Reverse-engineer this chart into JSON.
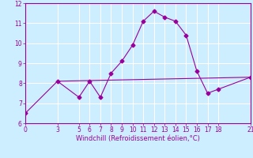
{
  "xlabel": "Windchill (Refroidissement éolien,°C)",
  "x_data": [
    0,
    3,
    5,
    6,
    7,
    8,
    9,
    10,
    11,
    12,
    13,
    14,
    15,
    16,
    17,
    18,
    21
  ],
  "y_line1": [
    6.5,
    8.1,
    7.3,
    8.1,
    7.3,
    8.5,
    9.1,
    9.9,
    11.1,
    11.6,
    11.3,
    11.1,
    10.4,
    8.6,
    7.5,
    7.7,
    8.3
  ],
  "y_line2_x": [
    3,
    21
  ],
  "y_line2_y": [
    8.1,
    8.3
  ],
  "line_color": "#990099",
  "background_color": "#cceeff",
  "grid_color": "#ffffff",
  "xlim": [
    0,
    21
  ],
  "ylim": [
    6,
    12
  ],
  "yticks": [
    6,
    7,
    8,
    9,
    10,
    11,
    12
  ],
  "xticks": [
    0,
    3,
    5,
    6,
    7,
    8,
    9,
    10,
    11,
    12,
    13,
    14,
    15,
    16,
    17,
    18,
    21
  ],
  "marker": "D",
  "markersize": 2.5,
  "linewidth": 0.8,
  "tick_labelsize": 5.5,
  "xlabel_fontsize": 6
}
